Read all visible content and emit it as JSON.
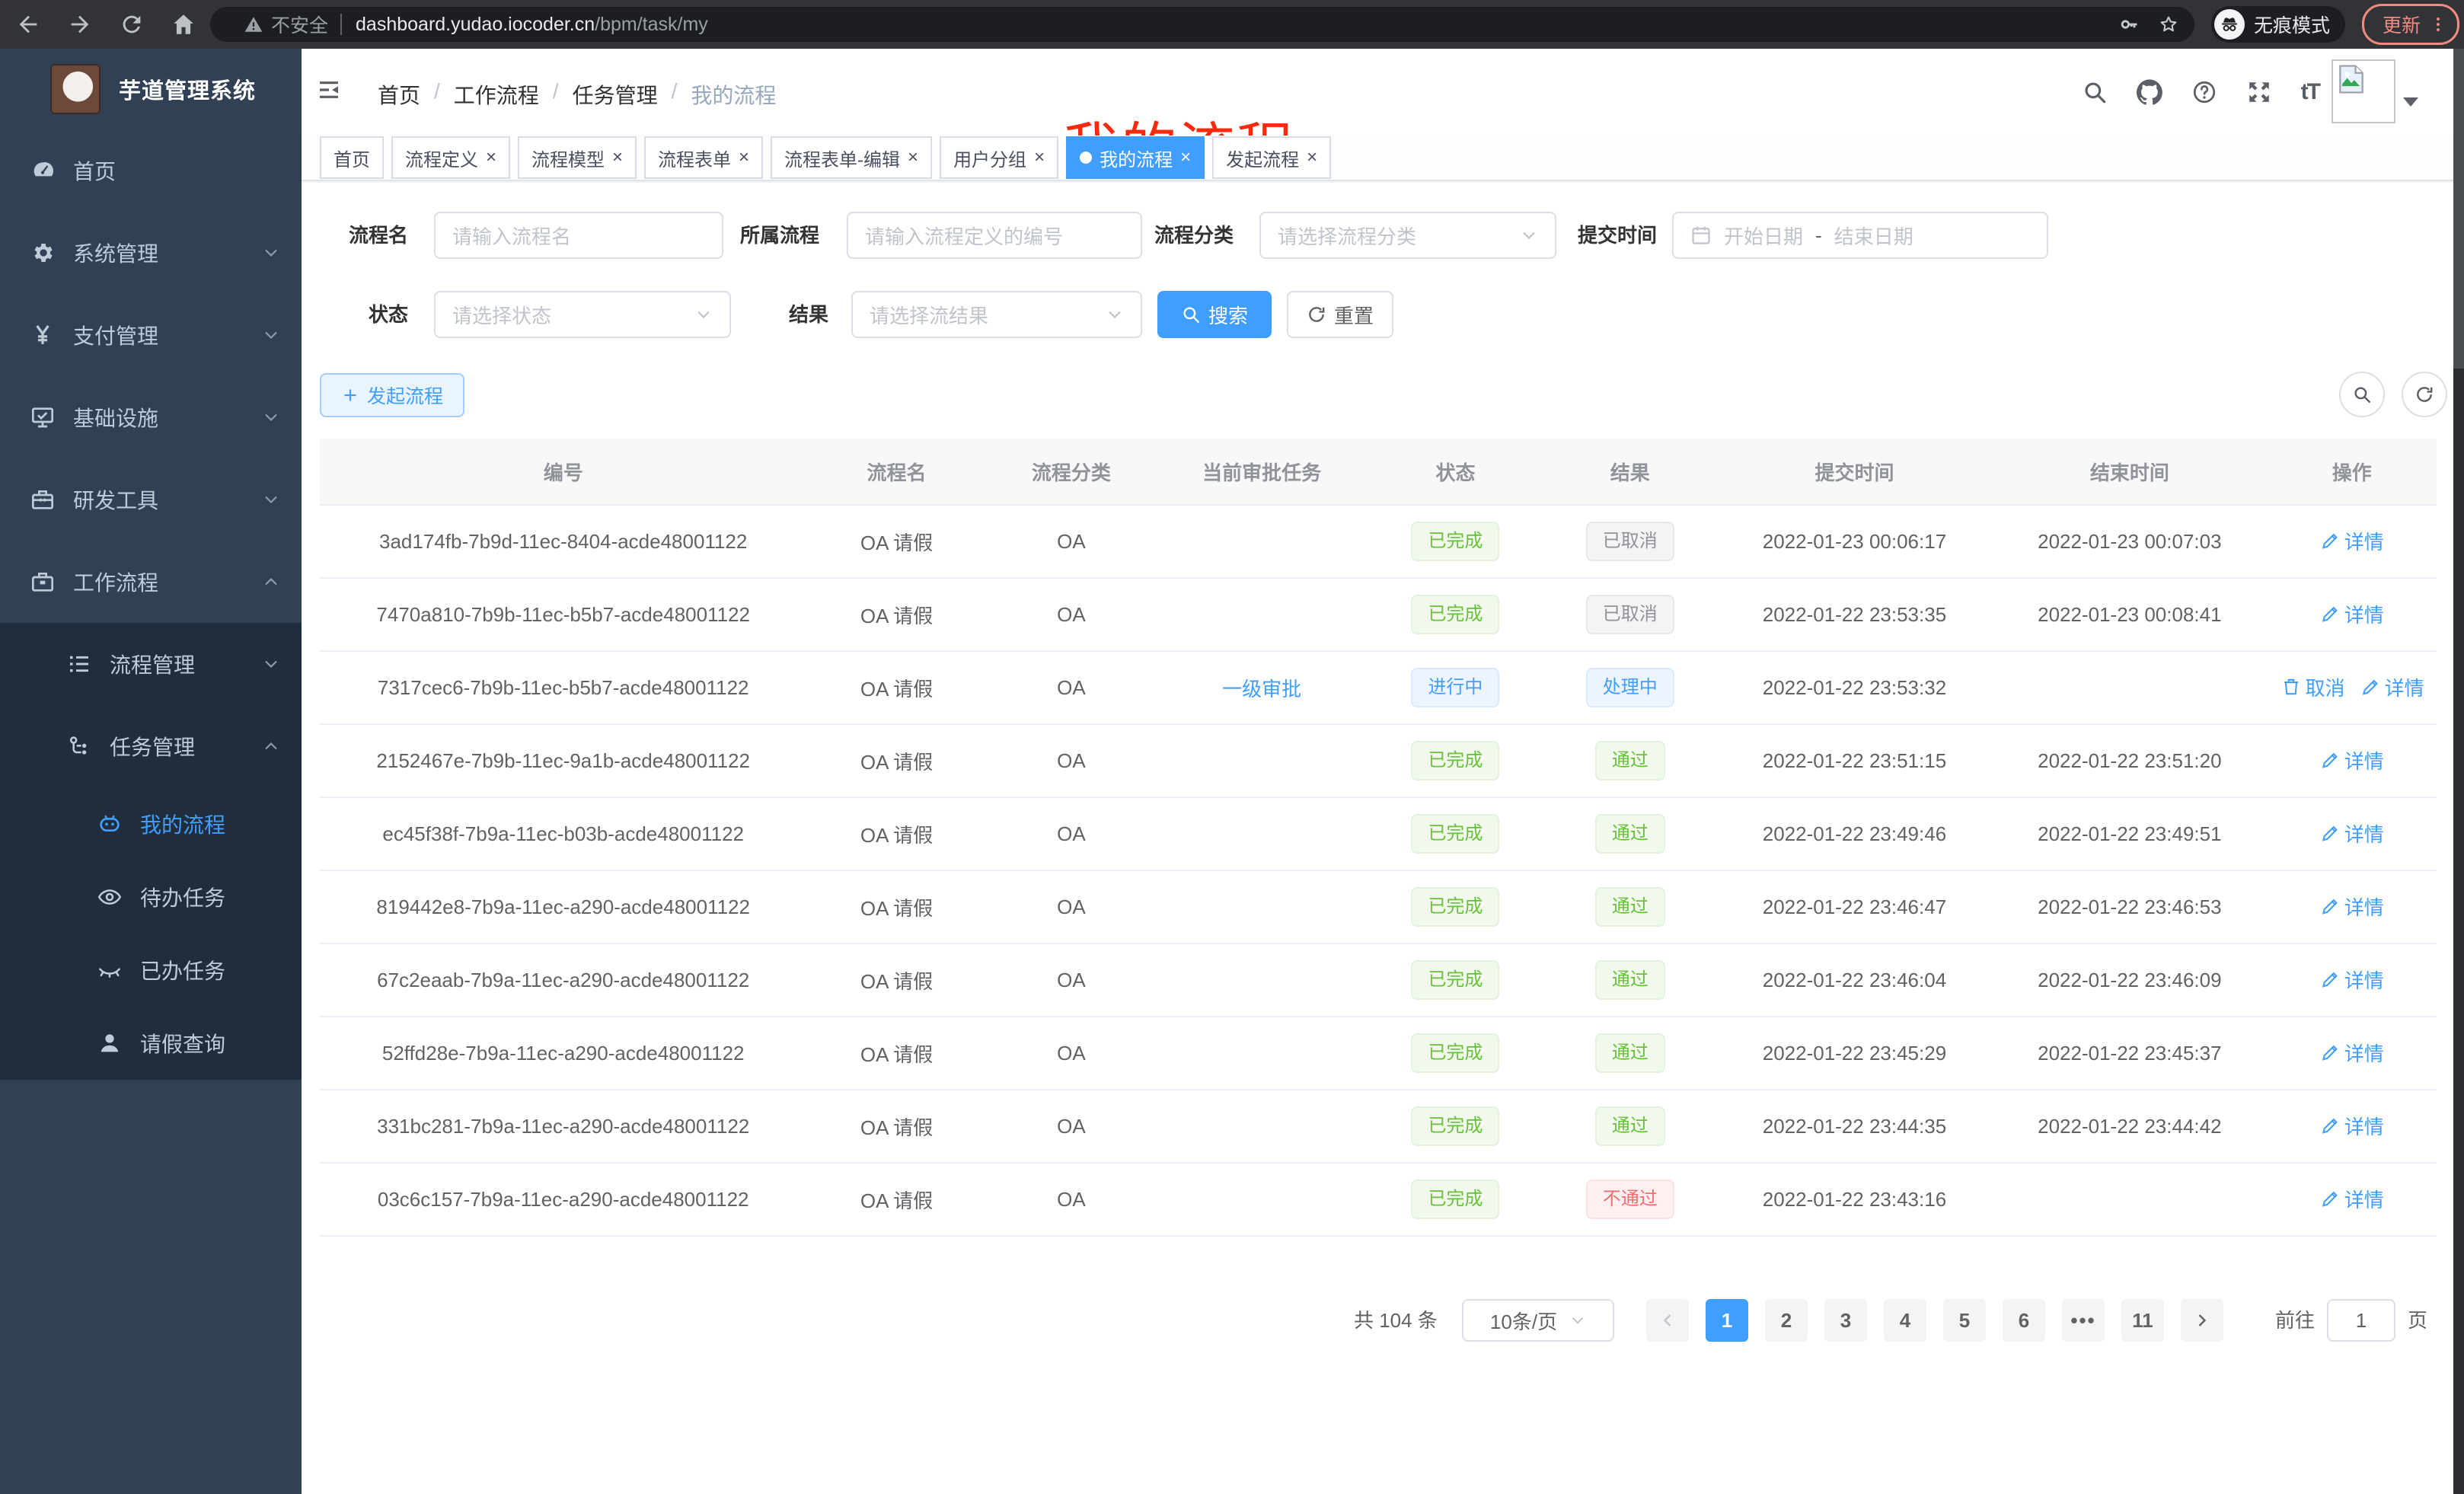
{
  "browser": {
    "security_label": "不安全",
    "url_host": "dashboard.yudao.iocoder.cn",
    "url_path": "/bpm/task/my",
    "incognito_label": "无痕模式",
    "update_label": "更新"
  },
  "sidebar": {
    "app_title": "芋道管理系统",
    "items": [
      {
        "label": "首页",
        "icon": "gauge-icon",
        "level": 1,
        "dark": false,
        "active": false,
        "chevron": ""
      },
      {
        "label": "系统管理",
        "icon": "gear-icon",
        "level": 1,
        "dark": false,
        "active": false,
        "chevron": "down"
      },
      {
        "label": "支付管理",
        "icon": "yen-icon",
        "level": 1,
        "dark": false,
        "active": false,
        "chevron": "down"
      },
      {
        "label": "基础设施",
        "icon": "monitor-icon",
        "level": 1,
        "dark": false,
        "active": false,
        "chevron": "down"
      },
      {
        "label": "研发工具",
        "icon": "toolbox-icon",
        "level": 1,
        "dark": false,
        "active": false,
        "chevron": "down"
      },
      {
        "label": "工作流程",
        "icon": "briefcase-icon",
        "level": 1,
        "dark": false,
        "active": false,
        "chevron": "up"
      },
      {
        "label": "流程管理",
        "icon": "list-icon",
        "level": 2,
        "dark": true,
        "active": false,
        "chevron": "down"
      },
      {
        "label": "任务管理",
        "icon": "flow-icon",
        "level": 2,
        "dark": true,
        "active": false,
        "chevron": "up"
      },
      {
        "label": "我的流程",
        "icon": "robot-icon",
        "level": 3,
        "dark": true,
        "active": true,
        "chevron": ""
      },
      {
        "label": "待办任务",
        "icon": "eye-icon",
        "level": 3,
        "dark": true,
        "active": false,
        "chevron": ""
      },
      {
        "label": "已办任务",
        "icon": "eye-closed-icon",
        "level": 3,
        "dark": true,
        "active": false,
        "chevron": ""
      },
      {
        "label": "请假查询",
        "icon": "user-icon",
        "level": 3,
        "dark": true,
        "active": false,
        "chevron": ""
      }
    ]
  },
  "header": {
    "breadcrumb": [
      "首页",
      "工作流程",
      "任务管理",
      "我的流程"
    ],
    "annotation": "我的流程"
  },
  "tabs": [
    {
      "label": "首页",
      "closable": false,
      "active": false
    },
    {
      "label": "流程定义",
      "closable": true,
      "active": false
    },
    {
      "label": "流程模型",
      "closable": true,
      "active": false
    },
    {
      "label": "流程表单",
      "closable": true,
      "active": false
    },
    {
      "label": "流程表单-编辑",
      "closable": true,
      "active": false
    },
    {
      "label": "用户分组",
      "closable": true,
      "active": false
    },
    {
      "label": "我的流程",
      "closable": true,
      "active": true
    },
    {
      "label": "发起流程",
      "closable": true,
      "active": false
    }
  ],
  "filters": {
    "process_name": {
      "label": "流程名",
      "placeholder": "请输入流程名"
    },
    "process_def": {
      "label": "所属流程",
      "placeholder": "请输入流程定义的编号"
    },
    "category": {
      "label": "流程分类",
      "placeholder": "请选择流程分类"
    },
    "submit_time": {
      "label": "提交时间",
      "start_placeholder": "开始日期",
      "separator": "-",
      "end_placeholder": "结束日期"
    },
    "status": {
      "label": "状态",
      "placeholder": "请选择状态"
    },
    "result": {
      "label": "结果",
      "placeholder": "请选择流结果"
    },
    "search_label": "搜索",
    "reset_label": "重置"
  },
  "toolbar": {
    "create_label": "发起流程"
  },
  "table": {
    "columns": [
      "编号",
      "流程名",
      "流程分类",
      "当前审批任务",
      "状态",
      "结果",
      "提交时间",
      "结束时间",
      "操作"
    ],
    "action_labels": {
      "detail": "详情",
      "cancel": "取消"
    },
    "rows": [
      {
        "id": "3ad174fb-7b9d-11ec-8404-acde48001122",
        "name": "OA 请假",
        "category": "OA",
        "task": "",
        "status": "已完成",
        "status_type": "success",
        "result": "已取消",
        "result_type": "info",
        "submit_time": "2022-01-23 00:06:17",
        "end_time": "2022-01-23 00:07:03",
        "actions": [
          "detail"
        ]
      },
      {
        "id": "7470a810-7b9b-11ec-b5b7-acde48001122",
        "name": "OA 请假",
        "category": "OA",
        "task": "",
        "status": "已完成",
        "status_type": "success",
        "result": "已取消",
        "result_type": "info",
        "submit_time": "2022-01-22 23:53:35",
        "end_time": "2022-01-23 00:08:41",
        "actions": [
          "detail"
        ]
      },
      {
        "id": "7317cec6-7b9b-11ec-b5b7-acde48001122",
        "name": "OA 请假",
        "category": "OA",
        "task": "一级审批",
        "status": "进行中",
        "status_type": "primary",
        "result": "处理中",
        "result_type": "primary",
        "submit_time": "2022-01-22 23:53:32",
        "end_time": "",
        "actions": [
          "cancel",
          "detail"
        ]
      },
      {
        "id": "2152467e-7b9b-11ec-9a1b-acde48001122",
        "name": "OA 请假",
        "category": "OA",
        "task": "",
        "status": "已完成",
        "status_type": "success",
        "result": "通过",
        "result_type": "success",
        "submit_time": "2022-01-22 23:51:15",
        "end_time": "2022-01-22 23:51:20",
        "actions": [
          "detail"
        ]
      },
      {
        "id": "ec45f38f-7b9a-11ec-b03b-acde48001122",
        "name": "OA 请假",
        "category": "OA",
        "task": "",
        "status": "已完成",
        "status_type": "success",
        "result": "通过",
        "result_type": "success",
        "submit_time": "2022-01-22 23:49:46",
        "end_time": "2022-01-22 23:49:51",
        "actions": [
          "detail"
        ]
      },
      {
        "id": "819442e8-7b9a-11ec-a290-acde48001122",
        "name": "OA 请假",
        "category": "OA",
        "task": "",
        "status": "已完成",
        "status_type": "success",
        "result": "通过",
        "result_type": "success",
        "submit_time": "2022-01-22 23:46:47",
        "end_time": "2022-01-22 23:46:53",
        "actions": [
          "detail"
        ]
      },
      {
        "id": "67c2eaab-7b9a-11ec-a290-acde48001122",
        "name": "OA 请假",
        "category": "OA",
        "task": "",
        "status": "已完成",
        "status_type": "success",
        "result": "通过",
        "result_type": "success",
        "submit_time": "2022-01-22 23:46:04",
        "end_time": "2022-01-22 23:46:09",
        "actions": [
          "detail"
        ]
      },
      {
        "id": "52ffd28e-7b9a-11ec-a290-acde48001122",
        "name": "OA 请假",
        "category": "OA",
        "task": "",
        "status": "已完成",
        "status_type": "success",
        "result": "通过",
        "result_type": "success",
        "submit_time": "2022-01-22 23:45:29",
        "end_time": "2022-01-22 23:45:37",
        "actions": [
          "detail"
        ]
      },
      {
        "id": "331bc281-7b9a-11ec-a290-acde48001122",
        "name": "OA 请假",
        "category": "OA",
        "task": "",
        "status": "已完成",
        "status_type": "success",
        "result": "通过",
        "result_type": "success",
        "submit_time": "2022-01-22 23:44:35",
        "end_time": "2022-01-22 23:44:42",
        "actions": [
          "detail"
        ]
      },
      {
        "id": "03c6c157-7b9a-11ec-a290-acde48001122",
        "name": "OA 请假",
        "category": "OA",
        "task": "",
        "status": "已完成",
        "status_type": "success",
        "result": "不通过",
        "result_type": "danger",
        "submit_time": "2022-01-22 23:43:16",
        "end_time": "",
        "actions": [
          "detail"
        ]
      }
    ]
  },
  "pagination": {
    "total_label": "共 104 条",
    "page_size": "10条/页",
    "pages": [
      "1",
      "2",
      "3",
      "4",
      "5",
      "6",
      "...",
      "11"
    ],
    "active_page": "1",
    "goto_label": "前往",
    "goto_value": "1",
    "goto_suffix": "页"
  },
  "colors": {
    "primary": "#409eff",
    "success": "#67c23a",
    "info": "#909399",
    "danger": "#f56c6c",
    "sidebar_bg": "#304156",
    "submenu_bg": "#1f2d3d"
  }
}
